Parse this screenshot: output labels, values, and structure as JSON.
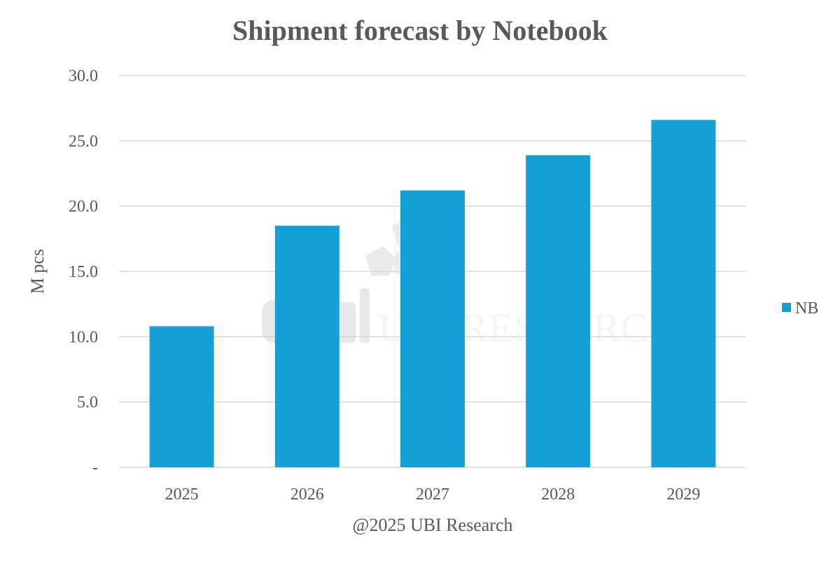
{
  "chart_data": {
    "type": "bar",
    "title": "Shipment forecast by Notebook",
    "xlabel": "@2025 UBI Research",
    "ylabel": "M pcs",
    "categories": [
      "2025",
      "2026",
      "2027",
      "2028",
      "2029"
    ],
    "series": [
      {
        "name": "NB",
        "values": [
          10.8,
          18.5,
          21.2,
          23.9,
          26.6
        ]
      }
    ],
    "ylim": [
      0,
      30
    ],
    "yticks": [
      {
        "value": 0,
        "label": "-"
      },
      {
        "value": 5,
        "label": "5.0"
      },
      {
        "value": 10,
        "label": "10.0"
      },
      {
        "value": 15,
        "label": "15.0"
      },
      {
        "value": 20,
        "label": "20.0"
      },
      {
        "value": 25,
        "label": "25.0"
      },
      {
        "value": 30,
        "label": "30.0"
      }
    ],
    "grid": true,
    "legend_position": "right",
    "colors": {
      "bar": "#149fd6",
      "grid": "#d9d9d9",
      "text": "#595959"
    },
    "watermark": "UBI RESEARCH"
  }
}
